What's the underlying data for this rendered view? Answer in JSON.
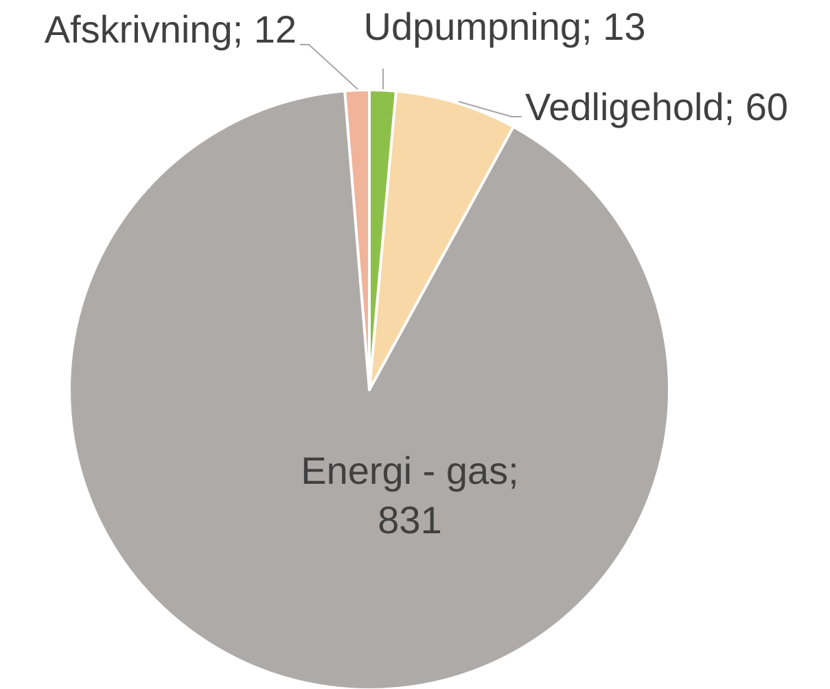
{
  "chart_data": {
    "type": "pie",
    "values": [
      13,
      60,
      831,
      12
    ],
    "value_labels": [
      "Udpumpning; 13",
      "Vedligehold; 60",
      "Energi - gas;\n831",
      "Afskrivning; 12"
    ],
    "colors": [
      "#8dc04a",
      "#f8d8a6",
      "#aeaaa8",
      "#f0b49a"
    ]
  }
}
